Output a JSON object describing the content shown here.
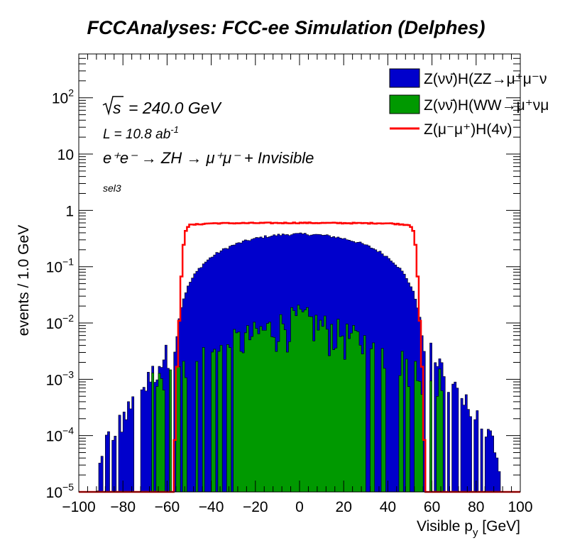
{
  "chart_data": {
    "type": "histogram",
    "title": "FCCAnalyses: FCC-ee Simulation (Delphes)",
    "xlabel": "Visible p",
    "xlabel_sub": "y",
    "xlabel_unit": " [GeV]",
    "ylabel": "events / 1.0 GeV",
    "xlim": [
      -100,
      100
    ],
    "ylim": [
      1e-05,
      600
    ],
    "yscale": "log",
    "bin_width": 1.0,
    "x_ticks": [
      -100,
      -80,
      -60,
      -40,
      -20,
      0,
      20,
      40,
      60,
      80,
      100
    ],
    "y_tick_labels": [
      {
        "value": 1e-05,
        "base": "10",
        "exp": "−5"
      },
      {
        "value": 0.0001,
        "base": "10",
        "exp": "−4"
      },
      {
        "value": 0.001,
        "base": "10",
        "exp": "−3"
      },
      {
        "value": 0.01,
        "base": "10",
        "exp": "−2"
      },
      {
        "value": 0.1,
        "base": "10",
        "exp": "−1"
      },
      {
        "value": 1,
        "base": "1",
        "exp": ""
      },
      {
        "value": 10,
        "base": "10",
        "exp": ""
      },
      {
        "value": 100,
        "base": "10",
        "exp": "2"
      }
    ],
    "annotations": {
      "sqrt_s": "= 240.0 GeV",
      "lumi": "L = 10.8 ab",
      "lumi_exp": "-1",
      "process": "e⁺e⁻ → ZH → μ⁺μ⁻ + Invisible",
      "selection": "sel3"
    },
    "legend_position": "top-right",
    "series": [
      {
        "name": "Z(νν̄)H(ZZ→μ⁺μ⁻ν",
        "style": "filled",
        "color": "#0000cc",
        "shape": {
          "half_width": 57,
          "peak": 0.38,
          "tail_end": 92
        },
        "tail_values": [
          {
            "x": -92,
            "y": 1e-05
          },
          {
            "x": -88,
            "y": 8e-05
          },
          {
            "x": -80,
            "y": 0.0002
          },
          {
            "x": -70,
            "y": 0.0008
          },
          {
            "x": -60,
            "y": 0.003
          },
          {
            "x": 60,
            "y": 0.003
          },
          {
            "x": 70,
            "y": 0.0008
          },
          {
            "x": 80,
            "y": 0.0002
          },
          {
            "x": 88,
            "y": 8e-05
          },
          {
            "x": 92,
            "y": 1e-05
          }
        ]
      },
      {
        "name": "Z(νν̄)H(WW→μ⁺νμ",
        "style": "filled",
        "color": "#009900",
        "shape": {
          "half_width": 67,
          "peak": 0.012
        },
        "tail_values": [
          {
            "x": -67,
            "y": 0.001
          },
          {
            "x": -60,
            "y": 0.001
          },
          {
            "x": -40,
            "y": 0.003
          },
          {
            "x": 0,
            "y": 0.012
          },
          {
            "x": 40,
            "y": 0.003
          },
          {
            "x": 60,
            "y": 0.001
          },
          {
            "x": 67,
            "y": 0.001
          }
        ]
      },
      {
        "name": "Z(μ⁻μ⁺)H(4ν)",
        "style": "line",
        "color": "#ff0000",
        "values_points": [
          {
            "x": -100,
            "y": 1e-05
          },
          {
            "x": -57,
            "y": 1e-05
          },
          {
            "x": -56,
            "y": 0.0007
          },
          {
            "x": -55,
            "y": 0.004
          },
          {
            "x": -54,
            "y": 0.03
          },
          {
            "x": -53,
            "y": 0.15
          },
          {
            "x": -52,
            "y": 0.4
          },
          {
            "x": -50,
            "y": 0.55
          },
          {
            "x": -40,
            "y": 0.59
          },
          {
            "x": 0,
            "y": 0.6
          },
          {
            "x": 40,
            "y": 0.59
          },
          {
            "x": 50,
            "y": 0.55
          },
          {
            "x": 52,
            "y": 0.4
          },
          {
            "x": 53,
            "y": 0.15
          },
          {
            "x": 54,
            "y": 0.03
          },
          {
            "x": 55,
            "y": 0.004
          },
          {
            "x": 56,
            "y": 0.0007
          },
          {
            "x": 57,
            "y": 1e-05
          },
          {
            "x": 100,
            "y": 1e-05
          }
        ]
      }
    ]
  }
}
